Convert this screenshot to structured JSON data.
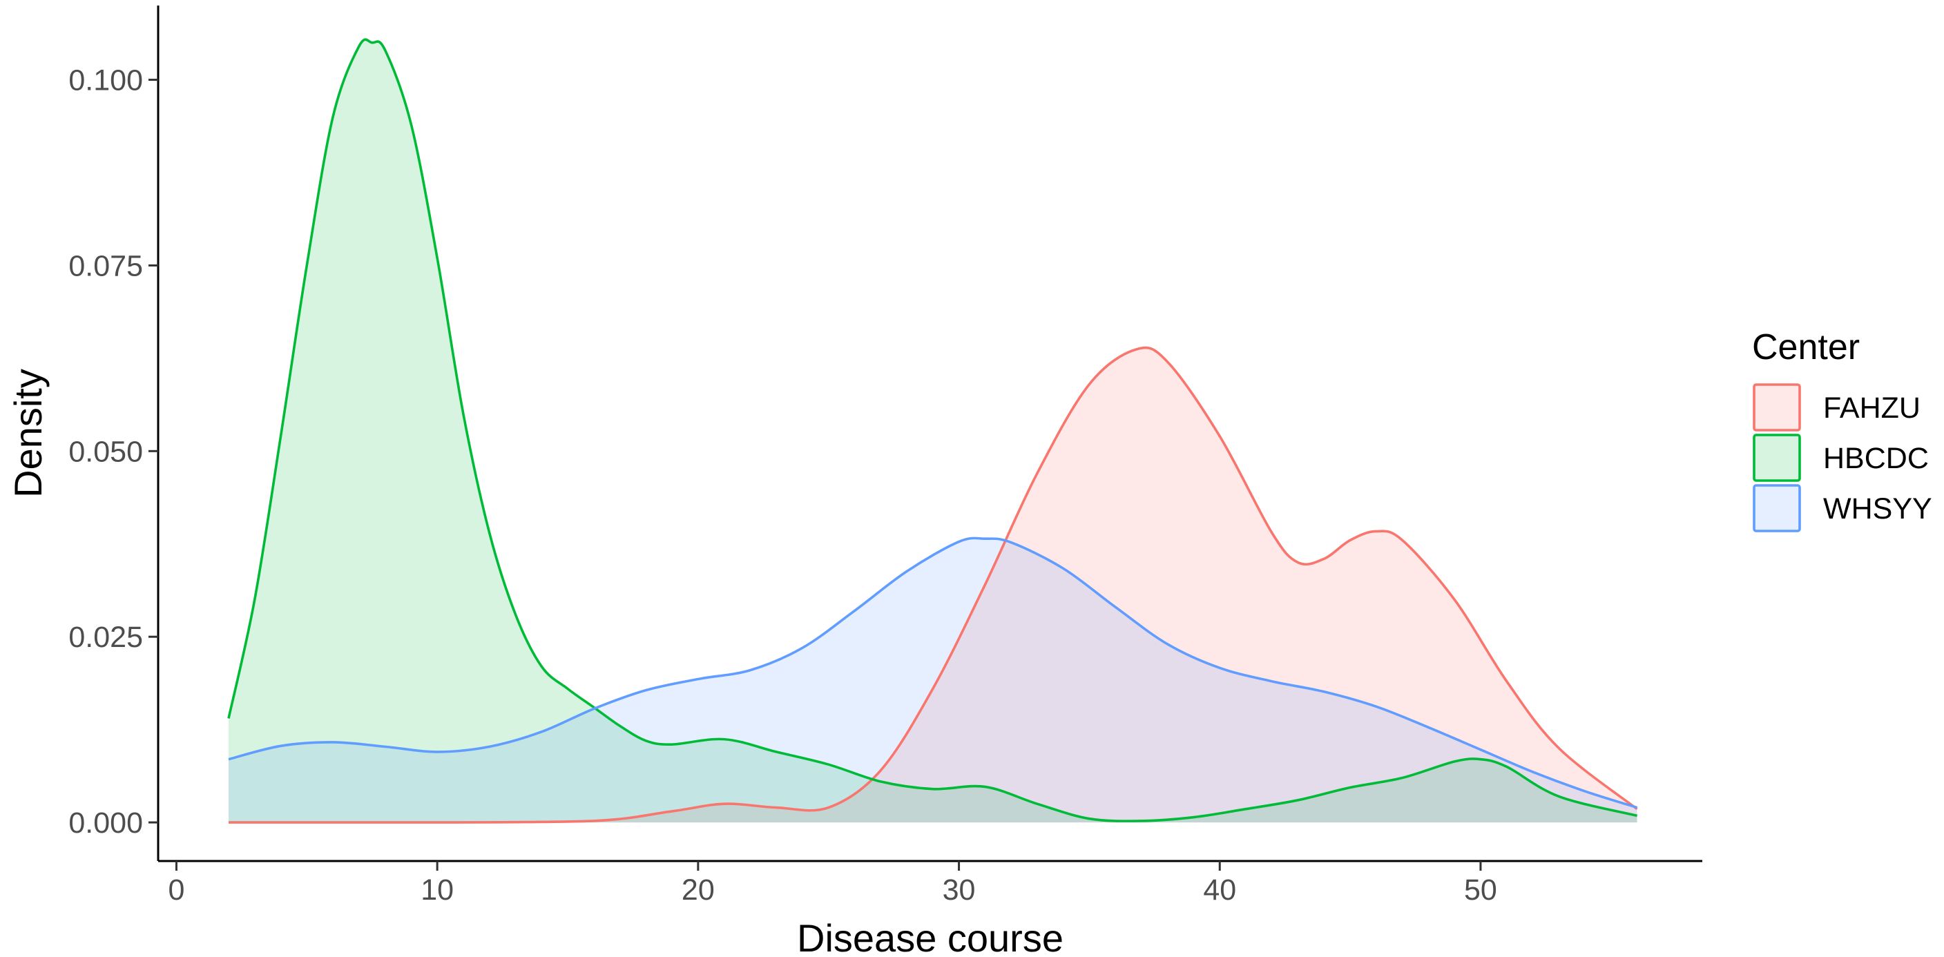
{
  "chart_data": {
    "type": "area",
    "subtype": "density",
    "title": "",
    "xlabel": "Disease course",
    "ylabel": "Density",
    "xlim": [
      -0.7,
      58.5
    ],
    "ylim": [
      -0.0052,
      0.11
    ],
    "x_ticks": [
      0,
      10,
      20,
      30,
      40,
      50
    ],
    "y_ticks": [
      0.0,
      0.025,
      0.05,
      0.075,
      0.1
    ],
    "y_tick_labels": [
      "0.000",
      "0.025",
      "0.050",
      "0.075",
      "0.100"
    ],
    "grid": false,
    "legend": {
      "title": "Center",
      "position": "right"
    },
    "series": [
      {
        "name": "FAHZU",
        "color": "#F8766D",
        "x": [
          2,
          10,
          16,
          19,
          21,
          23,
          25,
          27,
          29,
          31,
          33,
          35,
          36.8,
          38,
          40,
          42,
          43,
          44,
          45,
          46,
          47,
          49,
          51,
          53,
          56
        ],
        "y": [
          0,
          0,
          0.0002,
          0.0015,
          0.0025,
          0.002,
          0.002,
          0.007,
          0.018,
          0.032,
          0.047,
          0.059,
          0.0637,
          0.062,
          0.052,
          0.039,
          0.035,
          0.0355,
          0.038,
          0.0392,
          0.038,
          0.03,
          0.019,
          0.01,
          0.0018
        ]
      },
      {
        "name": "HBCDC",
        "color": "#00BA38",
        "x": [
          2,
          3,
          4,
          5,
          6,
          7,
          7.5,
          8,
          9,
          10,
          11,
          12,
          13,
          14,
          15,
          16,
          17,
          18,
          19,
          21,
          23,
          25,
          27,
          29,
          31,
          33,
          35,
          37,
          39,
          41,
          43,
          45,
          47,
          49,
          50,
          51,
          53,
          56
        ],
        "y": [
          0.014,
          0.03,
          0.052,
          0.075,
          0.095,
          0.1045,
          0.105,
          0.104,
          0.094,
          0.076,
          0.055,
          0.039,
          0.028,
          0.021,
          0.018,
          0.0155,
          0.013,
          0.011,
          0.0105,
          0.0112,
          0.0095,
          0.0078,
          0.0055,
          0.0045,
          0.0048,
          0.0025,
          0.0005,
          0.0002,
          0.0007,
          0.0018,
          0.003,
          0.0047,
          0.006,
          0.0082,
          0.0085,
          0.0075,
          0.0035,
          0.0009
        ]
      },
      {
        "name": "WHSYY",
        "color": "#619CFF",
        "x": [
          2,
          4,
          6,
          8,
          10,
          12,
          14,
          16,
          18,
          20,
          22,
          24,
          26,
          28,
          30,
          31,
          32,
          34,
          36,
          38,
          40,
          42,
          44,
          46,
          48,
          50,
          52,
          54,
          56
        ],
        "y": [
          0.0085,
          0.0103,
          0.0108,
          0.0102,
          0.0095,
          0.0102,
          0.0122,
          0.0153,
          0.0178,
          0.0193,
          0.0205,
          0.0235,
          0.0285,
          0.0338,
          0.0378,
          0.0382,
          0.0377,
          0.0342,
          0.029,
          0.024,
          0.0208,
          0.019,
          0.0176,
          0.0156,
          0.0128,
          0.0098,
          0.0068,
          0.0042,
          0.002
        ]
      }
    ]
  }
}
